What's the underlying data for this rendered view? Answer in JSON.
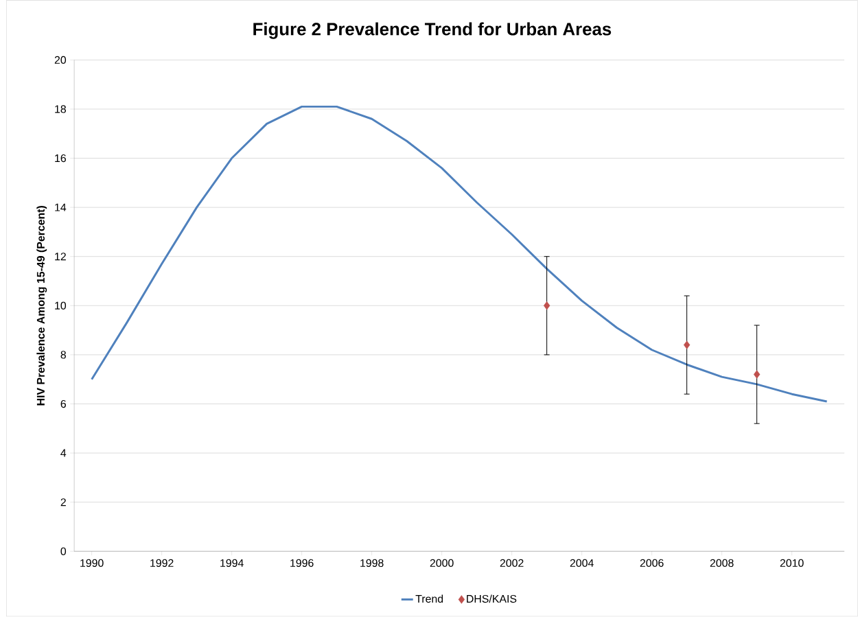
{
  "chart_data": {
    "type": "line",
    "title": "Figure 2 Prevalence Trend for Urban Areas",
    "ylabel": "HIV Prevalence Among 15-49 (Percent)",
    "series": [
      {
        "name": "Trend",
        "color": "#4f81bd",
        "marker": "none",
        "x": [
          1990,
          1991,
          1992,
          1993,
          1994,
          1995,
          1996,
          1997,
          1998,
          1999,
          2000,
          2001,
          2002,
          2003,
          2004,
          2005,
          2006,
          2007,
          2008,
          2009,
          2010,
          2011
        ],
        "values": [
          7.0,
          9.3,
          11.7,
          14.0,
          16.0,
          17.4,
          18.1,
          18.1,
          17.6,
          16.7,
          15.6,
          14.2,
          12.9,
          11.5,
          10.2,
          9.1,
          8.2,
          7.6,
          7.1,
          6.8,
          6.4,
          6.1
        ]
      },
      {
        "name": "DHS/KAIS",
        "type": "scatter",
        "color": "#c0504d",
        "marker": "diamond",
        "x": [
          2003,
          2007,
          2009
        ],
        "values": [
          10.0,
          8.4,
          7.2
        ],
        "errors": [
          2,
          2,
          2
        ]
      }
    ],
    "xlim": [
      1989.5,
      2011.5
    ],
    "xticks": [
      1990,
      1992,
      1994,
      1996,
      1998,
      2000,
      2002,
      2004,
      2006,
      2008,
      2010
    ],
    "ylim": [
      0,
      20
    ],
    "yticks": [
      0,
      2,
      4,
      6,
      8,
      10,
      12,
      14,
      16,
      18,
      20
    ],
    "grid": "y",
    "legend": "bottom"
  }
}
